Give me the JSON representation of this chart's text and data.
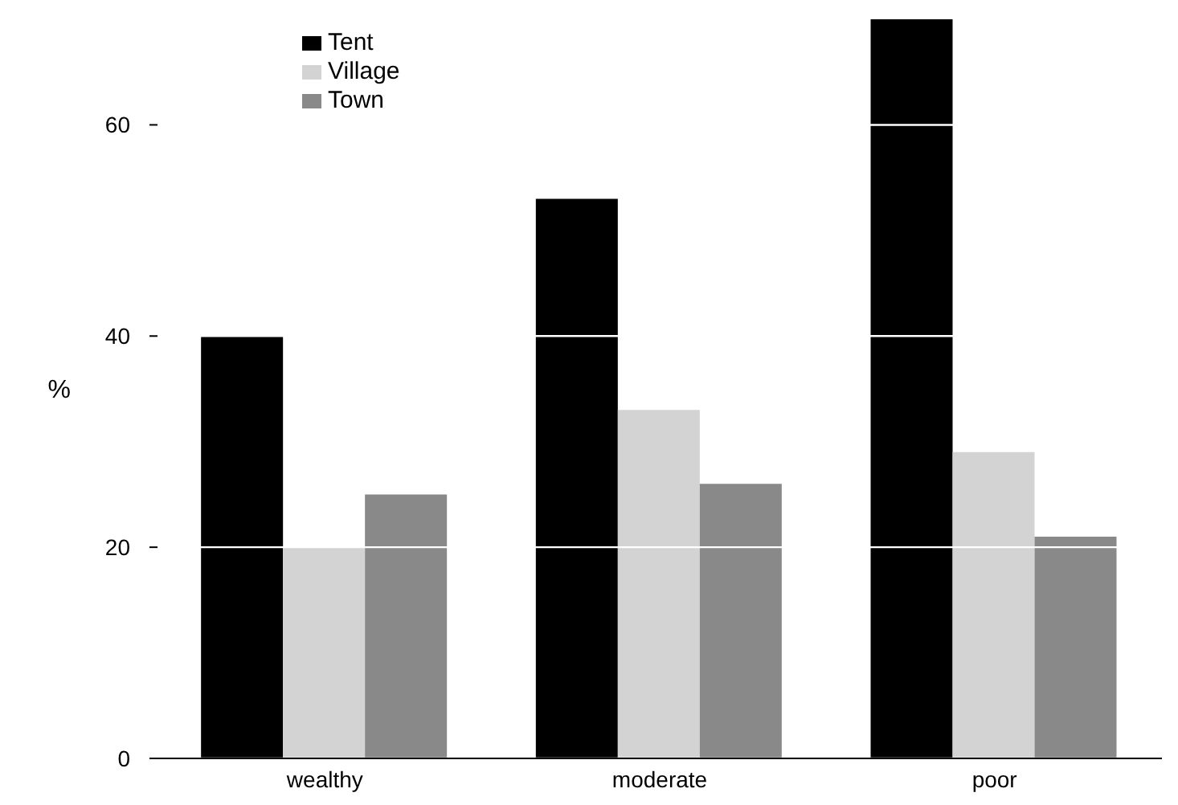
{
  "chart_data": {
    "type": "bar",
    "ylabel": "%",
    "categories": [
      "wealthy",
      "moderate",
      "poor"
    ],
    "series": [
      {
        "name": "Tent",
        "color": "#000000",
        "values": [
          40,
          53,
          70
        ]
      },
      {
        "name": "Village",
        "color": "#d3d3d3",
        "values": [
          20,
          33,
          29
        ]
      },
      {
        "name": "Town",
        "color": "#898989",
        "values": [
          25,
          26,
          21
        ]
      }
    ],
    "ylim": [
      0,
      70
    ],
    "yticks": [
      0,
      20,
      40,
      60
    ],
    "grid": "y",
    "legend": "top left"
  }
}
